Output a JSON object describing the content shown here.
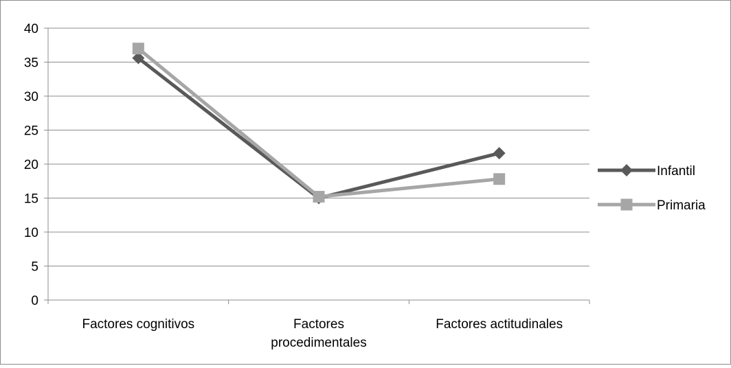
{
  "chart_data": {
    "type": "line",
    "categories": [
      "Factores cognitivos",
      "Factores procedimentales",
      "Factores actitudinales"
    ],
    "category_lines": [
      [
        "Factores cognitivos"
      ],
      [
        "Factores",
        "procedimentales"
      ],
      [
        "Factores actitudinales"
      ]
    ],
    "series": [
      {
        "name": "Infantil",
        "values": [
          35.6,
          15.0,
          21.6
        ],
        "color": "#595959",
        "marker": "diamond"
      },
      {
        "name": "Primaria",
        "values": [
          37.0,
          15.2,
          17.8
        ],
        "color": "#a6a6a6",
        "marker": "square"
      }
    ],
    "yticks": [
      "0",
      "5",
      "10",
      "15",
      "20",
      "25",
      "30",
      "35",
      "40"
    ],
    "ylim": [
      0,
      40
    ],
    "grid": true,
    "legend_position": "right",
    "title": "",
    "xlabel": "",
    "ylabel": ""
  }
}
